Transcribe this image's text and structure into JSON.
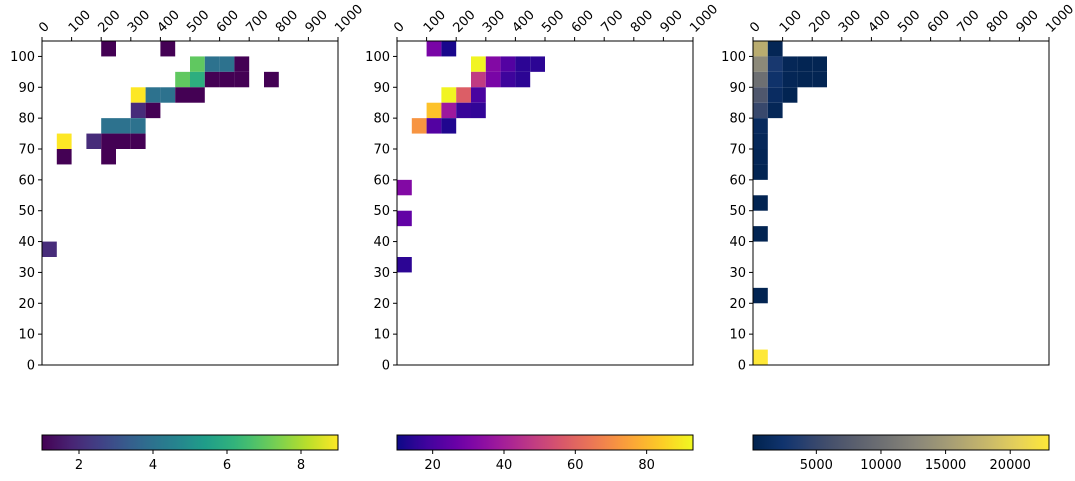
{
  "chart_data": [
    {
      "type": "heatmap",
      "x_ticks": [
        "0",
        "100",
        "200",
        "300",
        "400",
        "500",
        "600",
        "700",
        "800",
        "900",
        "1000"
      ],
      "y_ticks": [
        "0",
        "10",
        "20",
        "30",
        "40",
        "50",
        "60",
        "70",
        "80",
        "90",
        "100"
      ],
      "xlim": [
        0,
        1000
      ],
      "ylim": [
        0,
        105
      ],
      "colormap": "viridis",
      "colorbar_ticks": [
        "2",
        "4",
        "6",
        "8"
      ],
      "colorbar_tick_values": [
        2,
        4,
        6,
        8
      ],
      "vmin": 1,
      "vmax": 9,
      "bin_size": [
        50,
        5
      ],
      "cells": [
        {
          "x": 200,
          "y": 100,
          "v": 1
        },
        {
          "x": 400,
          "y": 100,
          "v": 1
        },
        {
          "x": 500,
          "y": 95,
          "v": 7
        },
        {
          "x": 550,
          "y": 95,
          "v": 4
        },
        {
          "x": 600,
          "y": 95,
          "v": 4
        },
        {
          "x": 650,
          "y": 95,
          "v": 1
        },
        {
          "x": 450,
          "y": 90,
          "v": 7
        },
        {
          "x": 500,
          "y": 90,
          "v": 6
        },
        {
          "x": 550,
          "y": 90,
          "v": 1
        },
        {
          "x": 600,
          "y": 90,
          "v": 1
        },
        {
          "x": 650,
          "y": 90,
          "v": 1
        },
        {
          "x": 750,
          "y": 90,
          "v": 1
        },
        {
          "x": 300,
          "y": 85,
          "v": 9
        },
        {
          "x": 350,
          "y": 85,
          "v": 4
        },
        {
          "x": 400,
          "y": 85,
          "v": 4
        },
        {
          "x": 450,
          "y": 85,
          "v": 1
        },
        {
          "x": 500,
          "y": 85,
          "v": 1
        },
        {
          "x": 300,
          "y": 80,
          "v": 2
        },
        {
          "x": 350,
          "y": 80,
          "v": 1
        },
        {
          "x": 200,
          "y": 75,
          "v": 4
        },
        {
          "x": 250,
          "y": 75,
          "v": 4
        },
        {
          "x": 300,
          "y": 75,
          "v": 4
        },
        {
          "x": 50,
          "y": 70,
          "v": 9
        },
        {
          "x": 150,
          "y": 70,
          "v": 2
        },
        {
          "x": 200,
          "y": 70,
          "v": 1
        },
        {
          "x": 250,
          "y": 70,
          "v": 1
        },
        {
          "x": 300,
          "y": 70,
          "v": 1
        },
        {
          "x": 50,
          "y": 65,
          "v": 1
        },
        {
          "x": 200,
          "y": 65,
          "v": 1
        },
        {
          "x": 0,
          "y": 35,
          "v": 2
        }
      ]
    },
    {
      "type": "heatmap",
      "x_ticks": [
        "0",
        "100",
        "200",
        "300",
        "400",
        "500",
        "600",
        "700",
        "800",
        "900",
        "1000"
      ],
      "y_ticks": [
        "0",
        "10",
        "20",
        "30",
        "40",
        "50",
        "60",
        "70",
        "80",
        "90",
        "100"
      ],
      "xlim": [
        0,
        1000
      ],
      "ylim": [
        0,
        105
      ],
      "colormap": "plasma",
      "colorbar_ticks": [
        "20",
        "40",
        "60",
        "80"
      ],
      "colorbar_tick_values": [
        20,
        40,
        60,
        80
      ],
      "vmin": 10,
      "vmax": 93,
      "bin_size": [
        50,
        5
      ],
      "cells": [
        {
          "x": 100,
          "y": 100,
          "v": 30
        },
        {
          "x": 150,
          "y": 100,
          "v": 12
        },
        {
          "x": 250,
          "y": 95,
          "v": 92
        },
        {
          "x": 300,
          "y": 95,
          "v": 32
        },
        {
          "x": 350,
          "y": 95,
          "v": 22
        },
        {
          "x": 400,
          "y": 95,
          "v": 15
        },
        {
          "x": 450,
          "y": 95,
          "v": 15
        },
        {
          "x": 250,
          "y": 90,
          "v": 48
        },
        {
          "x": 300,
          "y": 90,
          "v": 30
        },
        {
          "x": 350,
          "y": 90,
          "v": 18
        },
        {
          "x": 400,
          "y": 90,
          "v": 15
        },
        {
          "x": 150,
          "y": 85,
          "v": 92
        },
        {
          "x": 200,
          "y": 85,
          "v": 58
        },
        {
          "x": 250,
          "y": 85,
          "v": 20
        },
        {
          "x": 100,
          "y": 80,
          "v": 82
        },
        {
          "x": 150,
          "y": 80,
          "v": 38
        },
        {
          "x": 200,
          "y": 80,
          "v": 17
        },
        {
          "x": 250,
          "y": 80,
          "v": 16
        },
        {
          "x": 50,
          "y": 75,
          "v": 72
        },
        {
          "x": 100,
          "y": 75,
          "v": 22
        },
        {
          "x": 150,
          "y": 75,
          "v": 13
        },
        {
          "x": 0,
          "y": 55,
          "v": 32
        },
        {
          "x": 0,
          "y": 45,
          "v": 25
        },
        {
          "x": 0,
          "y": 30,
          "v": 15
        }
      ]
    },
    {
      "type": "heatmap",
      "x_ticks": [
        "0",
        "100",
        "200",
        "300",
        "400",
        "500",
        "600",
        "700",
        "800",
        "900",
        "1000"
      ],
      "y_ticks": [
        "0",
        "10",
        "20",
        "30",
        "40",
        "50",
        "60",
        "70",
        "80",
        "90",
        "100"
      ],
      "xlim": [
        0,
        1000
      ],
      "ylim": [
        0,
        105
      ],
      "colormap": "cividis",
      "colorbar_ticks": [
        "5000",
        "10000",
        "15000",
        "20000"
      ],
      "colorbar_tick_values": [
        5000,
        10000,
        15000,
        20000
      ],
      "vmin": 100,
      "vmax": 23000,
      "bin_size": [
        50,
        5
      ],
      "cells": [
        {
          "x": 0,
          "y": 100,
          "v": 17000
        },
        {
          "x": 50,
          "y": 100,
          "v": 600
        },
        {
          "x": 0,
          "y": 95,
          "v": 13000
        },
        {
          "x": 50,
          "y": 95,
          "v": 3000
        },
        {
          "x": 100,
          "y": 95,
          "v": 800
        },
        {
          "x": 150,
          "y": 95,
          "v": 500
        },
        {
          "x": 200,
          "y": 95,
          "v": 500
        },
        {
          "x": 0,
          "y": 90,
          "v": 10000
        },
        {
          "x": 50,
          "y": 90,
          "v": 2200
        },
        {
          "x": 100,
          "y": 90,
          "v": 700
        },
        {
          "x": 150,
          "y": 90,
          "v": 500
        },
        {
          "x": 200,
          "y": 90,
          "v": 500
        },
        {
          "x": 0,
          "y": 85,
          "v": 7000
        },
        {
          "x": 50,
          "y": 85,
          "v": 1500
        },
        {
          "x": 100,
          "y": 85,
          "v": 400
        },
        {
          "x": 0,
          "y": 80,
          "v": 5000
        },
        {
          "x": 50,
          "y": 80,
          "v": 800
        },
        {
          "x": 0,
          "y": 75,
          "v": 1200
        },
        {
          "x": 0,
          "y": 70,
          "v": 900
        },
        {
          "x": 0,
          "y": 65,
          "v": 700
        },
        {
          "x": 0,
          "y": 60,
          "v": 500
        },
        {
          "x": 0,
          "y": 50,
          "v": 400
        },
        {
          "x": 0,
          "y": 40,
          "v": 400
        },
        {
          "x": 0,
          "y": 20,
          "v": 400
        },
        {
          "x": 0,
          "y": 0,
          "v": 23000
        }
      ]
    }
  ]
}
